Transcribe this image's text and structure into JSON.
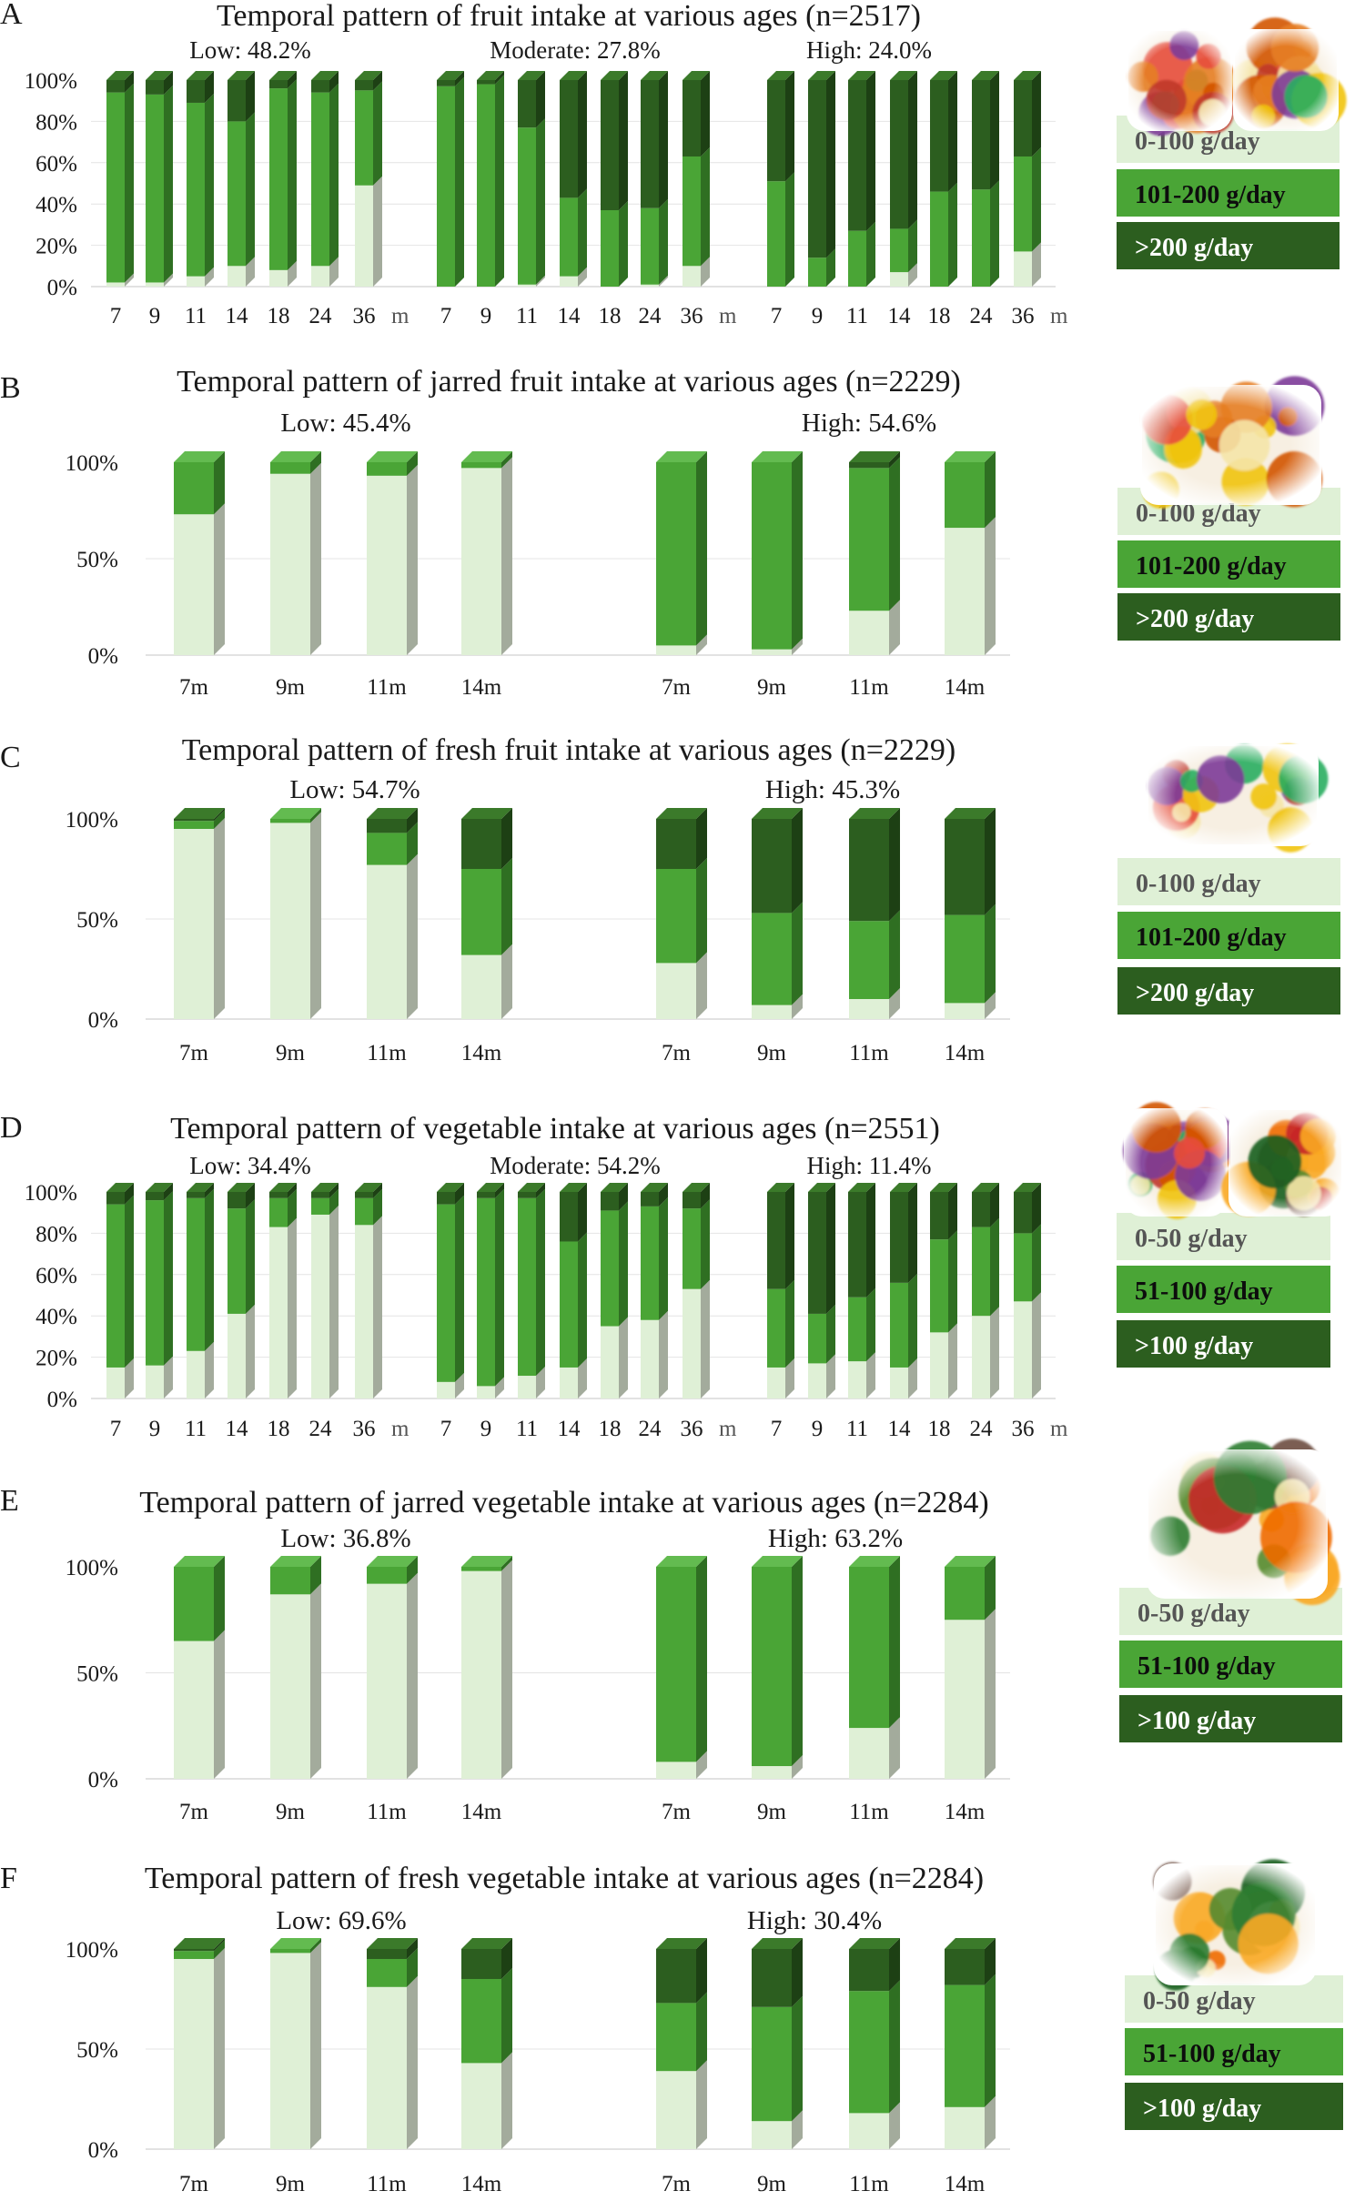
{
  "legend_colors": {
    "light": "#dff0d6",
    "mid": "#4aa536",
    "dark": "#2c5e1f"
  },
  "icons": [
    "jars-and-fruit-photo",
    "mixed-fruit-photo",
    "jarred-fruit-photo",
    "fresh-fruit-photo",
    "jarred-veg-and-vegetables-photo",
    "jarred-vegetable-photo",
    "fresh-vegetable-photo"
  ],
  "chart_data": [
    {
      "panel": "A",
      "type": "bar",
      "stacked": true,
      "title": "Temporal pattern of fruit intake at various ages (n=2517)",
      "y_ticks": [
        "100%",
        "80%",
        "60%",
        "40%",
        "20%",
        "0%"
      ],
      "ylim": [
        0,
        100
      ],
      "legend": [
        "0-100 g/day",
        "101-200 g/day",
        ">200 g/day"
      ],
      "groups": [
        {
          "label": "Low: 48.2%",
          "categories": [
            "7",
            "9",
            "11",
            "14",
            "18",
            "24",
            "36"
          ],
          "unit_label": "m",
          "series": [
            {
              "values": [
                2,
                2,
                5,
                10,
                8,
                10,
                49
              ]
            },
            {
              "values": [
                92,
                91,
                84,
                70,
                88,
                84,
                46
              ]
            },
            {
              "values": [
                6,
                7,
                11,
                20,
                4,
                6,
                5
              ]
            }
          ]
        },
        {
          "label": "Moderate: 27.8%",
          "categories": [
            "7",
            "9",
            "11",
            "14",
            "18",
            "24",
            "36"
          ],
          "unit_label": "m",
          "series": [
            {
              "values": [
                0,
                0,
                1,
                5,
                0,
                1,
                10
              ]
            },
            {
              "values": [
                97,
                98,
                76,
                38,
                37,
                37,
                53
              ]
            },
            {
              "values": [
                3,
                2,
                23,
                57,
                63,
                62,
                37
              ]
            }
          ]
        },
        {
          "label": "High: 24.0%",
          "categories": [
            "7",
            "9",
            "11",
            "14",
            "18",
            "24",
            "36"
          ],
          "unit_label": "m",
          "series": [
            {
              "values": [
                0,
                0,
                0,
                7,
                0,
                0,
                17
              ]
            },
            {
              "values": [
                51,
                14,
                27,
                21,
                46,
                47,
                46
              ]
            },
            {
              "values": [
                49,
                86,
                73,
                72,
                54,
                53,
                37
              ]
            }
          ]
        }
      ]
    },
    {
      "panel": "B",
      "type": "bar",
      "stacked": true,
      "title": "Temporal pattern of jarred fruit intake at various ages (n=2229)",
      "y_ticks": [
        "100%",
        "50%",
        "0%"
      ],
      "ylim": [
        0,
        100
      ],
      "legend": [
        "0-100 g/day",
        "101-200 g/day",
        ">200 g/day"
      ],
      "groups": [
        {
          "label": "Low: 45.4%",
          "categories": [
            "7m",
            "9m",
            "11m",
            "14m"
          ],
          "series": [
            {
              "values": [
                73,
                94,
                93,
                97
              ]
            },
            {
              "values": [
                27,
                6,
                7,
                3
              ]
            },
            {
              "values": [
                0,
                0,
                0,
                0
              ]
            }
          ]
        },
        {
          "label": "High: 54.6%",
          "categories": [
            "7m",
            "9m",
            "11m",
            "14m"
          ],
          "series": [
            {
              "values": [
                5,
                3,
                23,
                66
              ]
            },
            {
              "values": [
                95,
                97,
                74,
                34
              ]
            },
            {
              "values": [
                0,
                0,
                3,
                0
              ]
            }
          ]
        }
      ]
    },
    {
      "panel": "C",
      "type": "bar",
      "stacked": true,
      "title": "Temporal pattern of fresh fruit intake at various ages (n=2229)",
      "y_ticks": [
        "100%",
        "50%",
        "0%"
      ],
      "ylim": [
        0,
        100
      ],
      "legend": [
        "0-100 g/day",
        "101-200 g/day",
        ">200 g/day"
      ],
      "groups": [
        {
          "label": "Low: 54.7%",
          "categories": [
            "7m",
            "9m",
            "11m",
            "14m"
          ],
          "series": [
            {
              "values": [
                95,
                98,
                77,
                32
              ]
            },
            {
              "values": [
                4,
                2,
                16,
                43
              ]
            },
            {
              "values": [
                1,
                0,
                7,
                25
              ]
            }
          ]
        },
        {
          "label": "High: 45.3%",
          "categories": [
            "7m",
            "9m",
            "11m",
            "14m"
          ],
          "series": [
            {
              "values": [
                28,
                7,
                10,
                8
              ]
            },
            {
              "values": [
                47,
                46,
                39,
                44
              ]
            },
            {
              "values": [
                25,
                47,
                51,
                48
              ]
            }
          ]
        }
      ]
    },
    {
      "panel": "D",
      "type": "bar",
      "stacked": true,
      "title": "Temporal pattern of vegetable intake at various ages (n=2551)",
      "y_ticks": [
        "100%",
        "80%",
        "60%",
        "40%",
        "20%",
        "0%"
      ],
      "ylim": [
        0,
        100
      ],
      "legend": [
        "0-50 g/day",
        "51-100 g/day",
        ">100 g/day"
      ],
      "groups": [
        {
          "label": "Low: 34.4%",
          "categories": [
            "7",
            "9",
            "11",
            "14",
            "18",
            "24",
            "36"
          ],
          "unit_label": "m",
          "series": [
            {
              "values": [
                15,
                16,
                23,
                41,
                83,
                89,
                84
              ]
            },
            {
              "values": [
                79,
                80,
                74,
                51,
                14,
                8,
                13
              ]
            },
            {
              "values": [
                6,
                4,
                3,
                8,
                3,
                3,
                3
              ]
            }
          ]
        },
        {
          "label": "Moderate: 54.2%",
          "categories": [
            "7",
            "9",
            "11",
            "14",
            "18",
            "24",
            "36"
          ],
          "unit_label": "m",
          "series": [
            {
              "values": [
                8,
                6,
                11,
                15,
                35,
                38,
                53
              ]
            },
            {
              "values": [
                86,
                91,
                86,
                61,
                56,
                55,
                39
              ]
            },
            {
              "values": [
                6,
                3,
                3,
                24,
                9,
                7,
                8
              ]
            }
          ]
        },
        {
          "label": "High: 11.4%",
          "categories": [
            "7",
            "9",
            "11",
            "14",
            "18",
            "24",
            "36"
          ],
          "unit_label": "m",
          "series": [
            {
              "values": [
                15,
                17,
                18,
                15,
                32,
                40,
                47
              ]
            },
            {
              "values": [
                38,
                24,
                31,
                41,
                45,
                43,
                33
              ]
            },
            {
              "values": [
                47,
                59,
                51,
                44,
                23,
                17,
                20
              ]
            }
          ]
        }
      ]
    },
    {
      "panel": "E",
      "type": "bar",
      "stacked": true,
      "title": "Temporal pattern of jarred vegetable intake at various ages (n=2284)",
      "y_ticks": [
        "100%",
        "50%",
        "0%"
      ],
      "ylim": [
        0,
        100
      ],
      "legend": [
        "0-50 g/day",
        "51-100 g/day",
        ">100 g/day"
      ],
      "groups": [
        {
          "label": "Low: 36.8%",
          "categories": [
            "7m",
            "9m",
            "11m",
            "14m"
          ],
          "series": [
            {
              "values": [
                65,
                87,
                92,
                98
              ]
            },
            {
              "values": [
                35,
                13,
                8,
                2
              ]
            },
            {
              "values": [
                0,
                0,
                0,
                0
              ]
            }
          ]
        },
        {
          "label": "High: 63.2%",
          "categories": [
            "7m",
            "9m",
            "11m",
            "14m"
          ],
          "series": [
            {
              "values": [
                8,
                6,
                24,
                75
              ]
            },
            {
              "values": [
                92,
                94,
                76,
                25
              ]
            },
            {
              "values": [
                0,
                0,
                0,
                0
              ]
            }
          ]
        }
      ]
    },
    {
      "panel": "F",
      "type": "bar",
      "stacked": true,
      "title": "Temporal pattern of fresh vegetable intake at various ages (n=2284)",
      "y_ticks": [
        "100%",
        "50%",
        "0%"
      ],
      "ylim": [
        0,
        100
      ],
      "legend": [
        "0-50 g/day",
        "51-100 g/day",
        ">100 g/day"
      ],
      "groups": [
        {
          "label": "Low: 69.6%",
          "categories": [
            "7m",
            "9m",
            "11m",
            "14m"
          ],
          "series": [
            {
              "values": [
                95,
                98,
                81,
                43
              ]
            },
            {
              "values": [
                4,
                2,
                14,
                42
              ]
            },
            {
              "values": [
                1,
                0,
                5,
                15
              ]
            }
          ]
        },
        {
          "label": "High: 30.4%",
          "categories": [
            "7m",
            "9m",
            "11m",
            "14m"
          ],
          "series": [
            {
              "values": [
                39,
                14,
                18,
                21
              ]
            },
            {
              "values": [
                34,
                57,
                61,
                61
              ]
            },
            {
              "values": [
                27,
                29,
                21,
                18
              ]
            }
          ]
        }
      ]
    }
  ]
}
